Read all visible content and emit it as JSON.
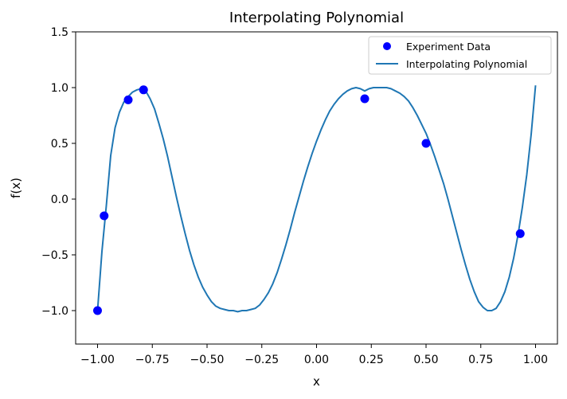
{
  "chart_data": {
    "type": "line",
    "title": "Interpolating Polynomial",
    "xlabel": "x",
    "ylabel": "f(x)",
    "xlim": [
      -1.1,
      1.1
    ],
    "ylim": [
      -1.3,
      1.5
    ],
    "xticks": [
      -1.0,
      -0.75,
      -0.5,
      -0.25,
      0.0,
      0.25,
      0.5,
      0.75,
      1.0
    ],
    "xtick_labels": [
      "−1.00",
      "−0.75",
      "−0.50",
      "−0.25",
      "0.00",
      "0.25",
      "0.50",
      "0.75",
      "1.00"
    ],
    "yticks": [
      -1.0,
      -0.5,
      0.0,
      0.5,
      1.0,
      1.5
    ],
    "ytick_labels": [
      "−1.0",
      "−0.5",
      "0.0",
      "0.5",
      "1.0",
      "1.5"
    ],
    "grid": false,
    "legend_position": "top-right",
    "series": [
      {
        "name": "Experiment Data",
        "kind": "scatter",
        "color": "#0000ff",
        "x": [
          -1.0,
          -0.97,
          -0.86,
          -0.79,
          0.22,
          0.5,
          0.93
        ],
        "y": [
          -1.0,
          -0.15,
          0.89,
          0.98,
          0.9,
          0.5,
          -0.31
        ]
      },
      {
        "name": "Interpolating Polynomial",
        "kind": "line",
        "color": "#1f77b4",
        "x": [
          -1.0,
          -0.98,
          -0.96,
          -0.94,
          -0.92,
          -0.9,
          -0.88,
          -0.86,
          -0.84,
          -0.82,
          -0.8,
          -0.78,
          -0.76,
          -0.74,
          -0.72,
          -0.7,
          -0.68,
          -0.66,
          -0.64,
          -0.62,
          -0.6,
          -0.58,
          -0.56,
          -0.54,
          -0.52,
          -0.5,
          -0.48,
          -0.46,
          -0.44,
          -0.42,
          -0.4,
          -0.38,
          -0.36,
          -0.34,
          -0.32,
          -0.3,
          -0.28,
          -0.26,
          -0.24,
          -0.22,
          -0.2,
          -0.18,
          -0.16,
          -0.14,
          -0.12,
          -0.1,
          -0.08,
          -0.06,
          -0.04,
          -0.02,
          0.0,
          0.02,
          0.04,
          0.06,
          0.08,
          0.1,
          0.12,
          0.14,
          0.16,
          0.18,
          0.2,
          0.22,
          0.24,
          0.26,
          0.28,
          0.3,
          0.32,
          0.34,
          0.36,
          0.38,
          0.4,
          0.42,
          0.44,
          0.46,
          0.48,
          0.5,
          0.52,
          0.54,
          0.56,
          0.58,
          0.6,
          0.62,
          0.64,
          0.66,
          0.68,
          0.7,
          0.72,
          0.74,
          0.76,
          0.78,
          0.8,
          0.82,
          0.84,
          0.86,
          0.88,
          0.9,
          0.92,
          0.94,
          0.96,
          0.98,
          1.0
        ],
        "y": [
          -1.0,
          -0.47,
          -0.06,
          0.39,
          0.64,
          0.78,
          0.87,
          0.92,
          0.96,
          0.98,
          0.99,
          0.97,
          0.9,
          0.81,
          0.68,
          0.54,
          0.38,
          0.2,
          0.02,
          -0.15,
          -0.31,
          -0.46,
          -0.59,
          -0.7,
          -0.79,
          -0.86,
          -0.92,
          -0.96,
          -0.98,
          -0.99,
          -1.0,
          -1.0,
          -1.01,
          -1.0,
          -1.0,
          -0.99,
          -0.98,
          -0.95,
          -0.9,
          -0.84,
          -0.76,
          -0.66,
          -0.54,
          -0.41,
          -0.27,
          -0.12,
          0.02,
          0.16,
          0.29,
          0.41,
          0.52,
          0.62,
          0.71,
          0.79,
          0.85,
          0.9,
          0.94,
          0.97,
          0.99,
          1.0,
          0.99,
          0.97,
          0.99,
          1.0,
          1.0,
          1.0,
          1.0,
          0.99,
          0.97,
          0.95,
          0.92,
          0.88,
          0.82,
          0.75,
          0.67,
          0.59,
          0.49,
          0.38,
          0.26,
          0.14,
          0.0,
          -0.15,
          -0.3,
          -0.45,
          -0.59,
          -0.72,
          -0.83,
          -0.92,
          -0.97,
          -1.0,
          -1.0,
          -0.98,
          -0.92,
          -0.83,
          -0.7,
          -0.53,
          -0.32,
          -0.07,
          0.22,
          0.58,
          1.02
        ]
      }
    ]
  }
}
